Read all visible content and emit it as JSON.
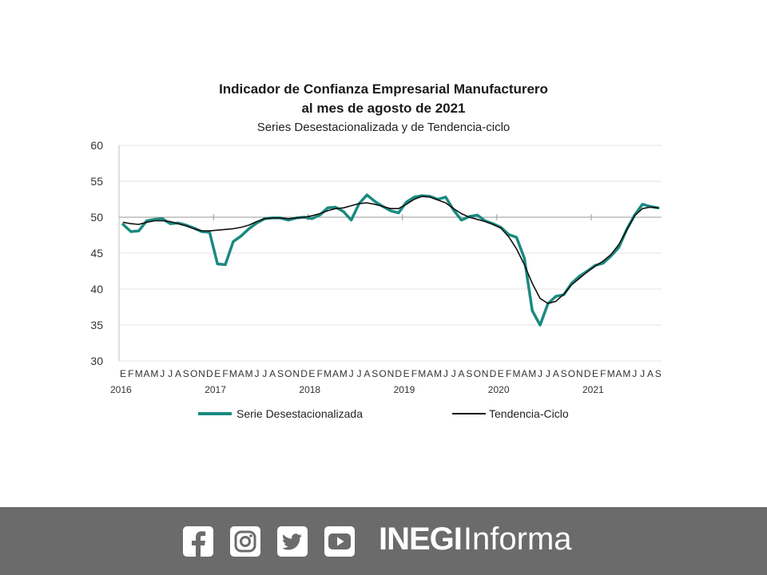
{
  "chart_data": {
    "type": "line",
    "title_line1": "Indicador de Confianza Empresarial Manufacturero",
    "title_line2": "al mes de agosto de 2021",
    "subtitle": "Series Desestacionalizada y de Tendencia-ciclo",
    "ylim": [
      30,
      60
    ],
    "yticks": [
      "60",
      "55",
      "50",
      "45",
      "40",
      "35",
      "30"
    ],
    "reference_line": 50,
    "grid": true,
    "month_ticks": [
      "E",
      "F",
      "M",
      "A",
      "M",
      "J",
      "J",
      "A",
      "S",
      "O",
      "N",
      "D"
    ],
    "years": [
      "2016",
      "2017",
      "2018",
      "2019",
      "2020",
      "2021"
    ],
    "x_start": "2016-01",
    "series": [
      {
        "name": "Serie Desestacionalizada",
        "color": "#1a8a80",
        "values": [
          49.0,
          48.0,
          48.1,
          49.5,
          49.7,
          49.8,
          49.1,
          49.2,
          48.9,
          48.5,
          48.0,
          47.9,
          43.5,
          43.4,
          46.6,
          47.4,
          48.4,
          49.2,
          49.8,
          49.9,
          49.9,
          49.6,
          49.9,
          50.0,
          49.8,
          50.3,
          51.3,
          51.4,
          50.8,
          49.6,
          51.9,
          53.1,
          52.2,
          51.5,
          50.9,
          50.6,
          52.1,
          52.8,
          53.0,
          52.9,
          52.5,
          52.8,
          51.0,
          49.6,
          50.1,
          50.3,
          49.5,
          49.1,
          48.6,
          47.6,
          47.2,
          44.3,
          37.0,
          35.0,
          38.0,
          39.0,
          39.2,
          40.8,
          41.8,
          42.5,
          43.3,
          43.6,
          44.6,
          45.8,
          48.3,
          50.3,
          51.8,
          51.5,
          51.3
        ]
      },
      {
        "name": "Tendencia-Ciclo",
        "color": "#111111",
        "values": [
          49.3,
          49.1,
          49.0,
          49.3,
          49.5,
          49.5,
          49.4,
          49.1,
          48.8,
          48.4,
          48.1,
          48.1,
          48.2,
          48.3,
          48.4,
          48.6,
          48.9,
          49.4,
          49.8,
          49.9,
          49.9,
          49.8,
          49.9,
          50.0,
          50.2,
          50.5,
          50.9,
          51.2,
          51.3,
          51.6,
          51.9,
          52.0,
          51.8,
          51.5,
          51.2,
          51.2,
          51.8,
          52.5,
          52.9,
          52.8,
          52.4,
          52.0,
          51.2,
          50.5,
          50.0,
          49.7,
          49.4,
          49.0,
          48.5,
          47.3,
          45.6,
          43.4,
          40.8,
          38.7,
          38.0,
          38.3,
          39.3,
          40.6,
          41.5,
          42.4,
          43.2,
          43.9,
          44.8,
          46.2,
          48.2,
          50.2,
          51.2,
          51.4,
          51.3
        ]
      }
    ],
    "legend_position": "bottom"
  },
  "footer": {
    "icons": [
      "facebook-icon",
      "instagram-icon",
      "twitter-icon",
      "youtube-icon"
    ],
    "brand_bold": "INEGI",
    "brand_light": "Informa",
    "background": "#6b6b6b"
  }
}
